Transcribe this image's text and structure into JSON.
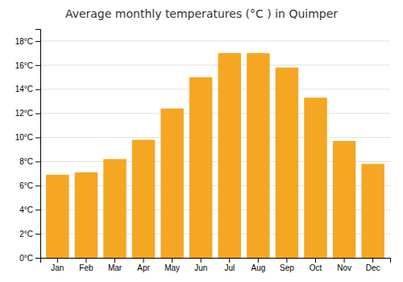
{
  "chart_data": {
    "type": "bar",
    "title": "Average monthly temperatures (°C ) in Quimper",
    "categories": [
      "Jan",
      "Feb",
      "Mar",
      "Apr",
      "May",
      "Jun",
      "Jul",
      "Aug",
      "Sep",
      "Oct",
      "Nov",
      "Dec"
    ],
    "values": [
      6.9,
      7.1,
      8.2,
      9.8,
      12.4,
      15.0,
      17.0,
      17.0,
      15.8,
      13.3,
      9.7,
      7.8
    ],
    "color": "#F5A623",
    "ylim": [
      0,
      19
    ],
    "yticks": [
      {
        "value": 0,
        "label": "0°C"
      },
      {
        "value": 2,
        "label": "2°C"
      },
      {
        "value": 4,
        "label": "4°C"
      },
      {
        "value": 6,
        "label": "6°C"
      },
      {
        "value": 8,
        "label": "8°C"
      },
      {
        "value": 10,
        "label": "10°C"
      },
      {
        "value": 12,
        "label": "12°C"
      },
      {
        "value": 14,
        "label": "14°C"
      },
      {
        "value": 16,
        "label": "16°C"
      },
      {
        "value": 18,
        "label": "18°C"
      }
    ],
    "grid": true
  }
}
